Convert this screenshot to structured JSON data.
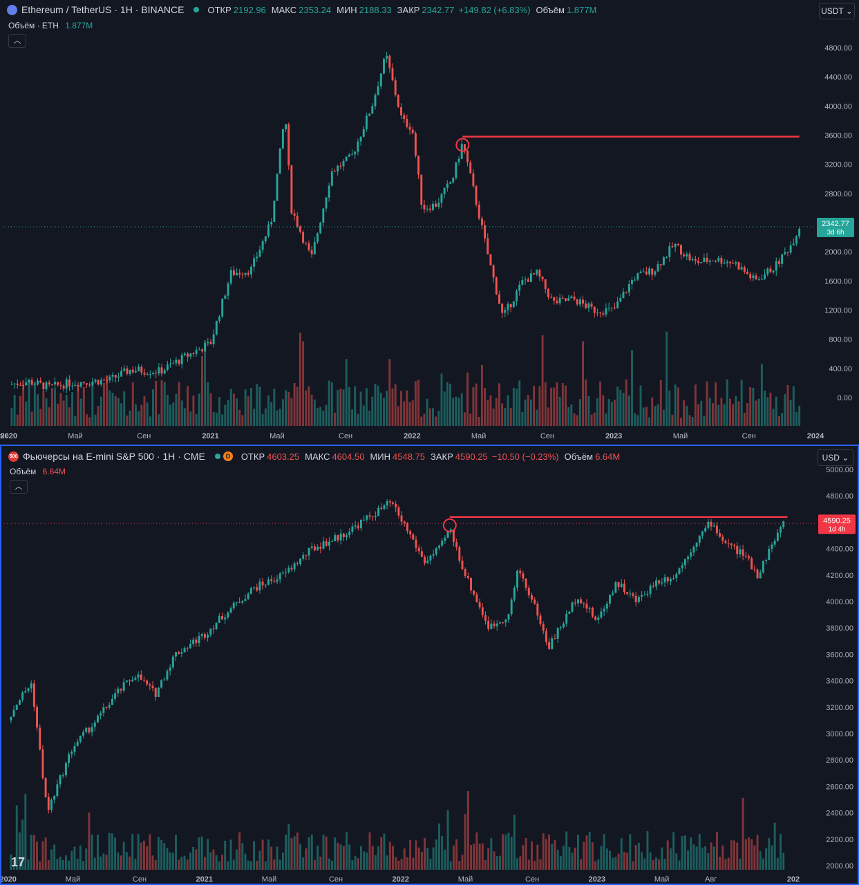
{
  "top": {
    "symbol": "Ethereum / TetherUS · 1H · BINANCE",
    "open_label": "ОТКР",
    "open": "2192.96",
    "high_label": "МАКС",
    "high": "2353.24",
    "low_label": "МИН",
    "low": "2188.33",
    "close_label": "ЗАКР",
    "close": "2342.77",
    "change": "+149.82 (+6.83%)",
    "volume_label": "Объём",
    "volume": "1.877M",
    "volume_series_label": "Объём · ETH",
    "currency": "USDT",
    "price_badge": "2342.77",
    "price_badge_time": "3d 6h",
    "colors": {
      "up": "#26a69a",
      "down": "#ef5350",
      "badge": "#26a69a",
      "annotation": "#f23645"
    }
  },
  "bottom": {
    "symbol": "Фьючерсы на E-mini S&P 500 · 1H · CME",
    "logo_text": "500",
    "open_label": "ОТКР",
    "open": "4603.25",
    "high_label": "МАКС",
    "high": "4604.50",
    "low_label": "МИН",
    "low": "4548.75",
    "close_label": "ЗАКР",
    "close": "4590.25",
    "change": "−10.50 (−0.23%)",
    "volume_label": "Объём",
    "volume": "6.64M",
    "volume_series_label": "Объём",
    "currency": "USD",
    "price_badge": "4590.25",
    "price_badge_time": "1d 4h",
    "colors": {
      "up": "#26a69a",
      "down": "#ef5350",
      "badge": "#f23645",
      "annotation": "#f23645"
    }
  },
  "chart_data": [
    {
      "type": "candlestick",
      "title": "Ethereum / TetherUS · 1H · BINANCE",
      "y_ticks": [
        "4800.00",
        "4400.00",
        "4000.00",
        "3600.00",
        "3200.00",
        "2800.00",
        "2400.00",
        "2000.00",
        "1600.00",
        "1200.00",
        "800.00",
        "400.00",
        "0.00"
      ],
      "y_tick_values": [
        4800,
        4400,
        4000,
        3600,
        3200,
        2800,
        2400,
        2000,
        1600,
        1200,
        800,
        400,
        0
      ],
      "x_ticks": [
        "ен",
        "2020",
        "Май",
        "Сен",
        "2021",
        "Май",
        "Сен",
        "2022",
        "Май",
        "Сен",
        "2023",
        "Май",
        "Сен",
        "2024"
      ],
      "x_range": [
        2019.97,
        2024.0
      ],
      "x_tick_values": [
        2019.97,
        2020.0,
        2020.33,
        2020.67,
        2021.0,
        2021.33,
        2021.67,
        2022.0,
        2022.33,
        2022.67,
        2023.0,
        2023.33,
        2023.67,
        2024.0
      ],
      "close_path": [
        [
          2020.0,
          180
        ],
        [
          2020.1,
          220
        ],
        [
          2020.2,
          140
        ],
        [
          2020.3,
          200
        ],
        [
          2020.5,
          240
        ],
        [
          2020.6,
          380
        ],
        [
          2020.75,
          360
        ],
        [
          2020.9,
          600
        ],
        [
          2021.0,
          740
        ],
        [
          2021.1,
          1700
        ],
        [
          2021.2,
          1750
        ],
        [
          2021.3,
          2400
        ],
        [
          2021.37,
          3900
        ],
        [
          2021.4,
          2600
        ],
        [
          2021.5,
          1900
        ],
        [
          2021.6,
          3100
        ],
        [
          2021.7,
          3300
        ],
        [
          2021.8,
          4000
        ],
        [
          2021.87,
          4700
        ],
        [
          2021.95,
          3800
        ],
        [
          2022.0,
          3700
        ],
        [
          2022.05,
          2600
        ],
        [
          2022.12,
          2650
        ],
        [
          2022.2,
          3000
        ],
        [
          2022.25,
          3500
        ],
        [
          2022.3,
          2900
        ],
        [
          2022.38,
          1900
        ],
        [
          2022.45,
          1100
        ],
        [
          2022.55,
          1600
        ],
        [
          2022.62,
          1700
        ],
        [
          2022.7,
          1300
        ],
        [
          2022.8,
          1350
        ],
        [
          2022.9,
          1200
        ],
        [
          2023.0,
          1200
        ],
        [
          2023.1,
          1650
        ],
        [
          2023.2,
          1750
        ],
        [
          2023.3,
          2100
        ],
        [
          2023.4,
          1850
        ],
        [
          2023.5,
          1900
        ],
        [
          2023.6,
          1850
        ],
        [
          2023.7,
          1600
        ],
        [
          2023.8,
          1800
        ],
        [
          2023.88,
          2100
        ],
        [
          2023.92,
          2342.77
        ]
      ],
      "annotation": {
        "type": "horizontal_line",
        "y": 3580,
        "x_start": 2022.25,
        "x_end": 2023.92,
        "marker_circle_x": 2022.25
      },
      "current_price": 2342.77
    },
    {
      "type": "candlestick",
      "title": "Фьючерсы на E-mini S&P 500 · 1H · CME",
      "y_ticks": [
        "5000.00",
        "4800.00",
        "4600.00",
        "4400.00",
        "4200.00",
        "4000.00",
        "3800.00",
        "3600.00",
        "3400.00",
        "3200.00",
        "3000.00",
        "2800.00",
        "2600.00",
        "2400.00",
        "2200.00",
        "2000.00"
      ],
      "y_tick_values": [
        5000,
        4800,
        4600,
        4400,
        4200,
        4000,
        3800,
        3600,
        3400,
        3200,
        3000,
        2800,
        2600,
        2400,
        2200,
        2000
      ],
      "x_ticks": [
        "2020",
        "Май",
        "Сен",
        "2021",
        "Май",
        "Сен",
        "2022",
        "Май",
        "Сен",
        "2023",
        "Май",
        "Авг",
        "202"
      ],
      "x_range": [
        2019.98,
        2024.12
      ],
      "x_tick_values": [
        2020.0,
        2020.33,
        2020.67,
        2021.0,
        2021.33,
        2021.67,
        2022.0,
        2022.33,
        2022.67,
        2023.0,
        2023.33,
        2023.58,
        2024.0
      ],
      "close_path": [
        [
          2020.0,
          3100
        ],
        [
          2020.05,
          3250
        ],
        [
          2020.12,
          3380
        ],
        [
          2020.2,
          2400
        ],
        [
          2020.25,
          2600
        ],
        [
          2020.33,
          2900
        ],
        [
          2020.45,
          3100
        ],
        [
          2020.55,
          3300
        ],
        [
          2020.65,
          3450
        ],
        [
          2020.75,
          3300
        ],
        [
          2020.85,
          3600
        ],
        [
          2021.0,
          3750
        ],
        [
          2021.1,
          3900
        ],
        [
          2021.25,
          4100
        ],
        [
          2021.4,
          4200
        ],
        [
          2021.55,
          4400
        ],
        [
          2021.7,
          4500
        ],
        [
          2021.8,
          4600
        ],
        [
          2021.95,
          4750
        ],
        [
          2022.05,
          4500
        ],
        [
          2022.12,
          4300
        ],
        [
          2022.2,
          4400
        ],
        [
          2022.25,
          4550
        ],
        [
          2022.33,
          4200
        ],
        [
          2022.45,
          3800
        ],
        [
          2022.55,
          3900
        ],
        [
          2022.6,
          4250
        ],
        [
          2022.7,
          3900
        ],
        [
          2022.75,
          3650
        ],
        [
          2022.85,
          3900
        ],
        [
          2022.9,
          4050
        ],
        [
          2023.0,
          3850
        ],
        [
          2023.1,
          4150
        ],
        [
          2023.2,
          4000
        ],
        [
          2023.3,
          4150
        ],
        [
          2023.4,
          4200
        ],
        [
          2023.5,
          4450
        ],
        [
          2023.58,
          4600
        ],
        [
          2023.65,
          4450
        ],
        [
          2023.75,
          4350
        ],
        [
          2023.82,
          4200
        ],
        [
          2023.88,
          4400
        ],
        [
          2023.95,
          4590.25
        ]
      ],
      "annotation": {
        "type": "horizontal_line",
        "y": 4640,
        "x_start": 2022.25,
        "x_end": 2023.97,
        "marker_circle_x": 2022.25
      },
      "current_price": 4590.25
    }
  ]
}
